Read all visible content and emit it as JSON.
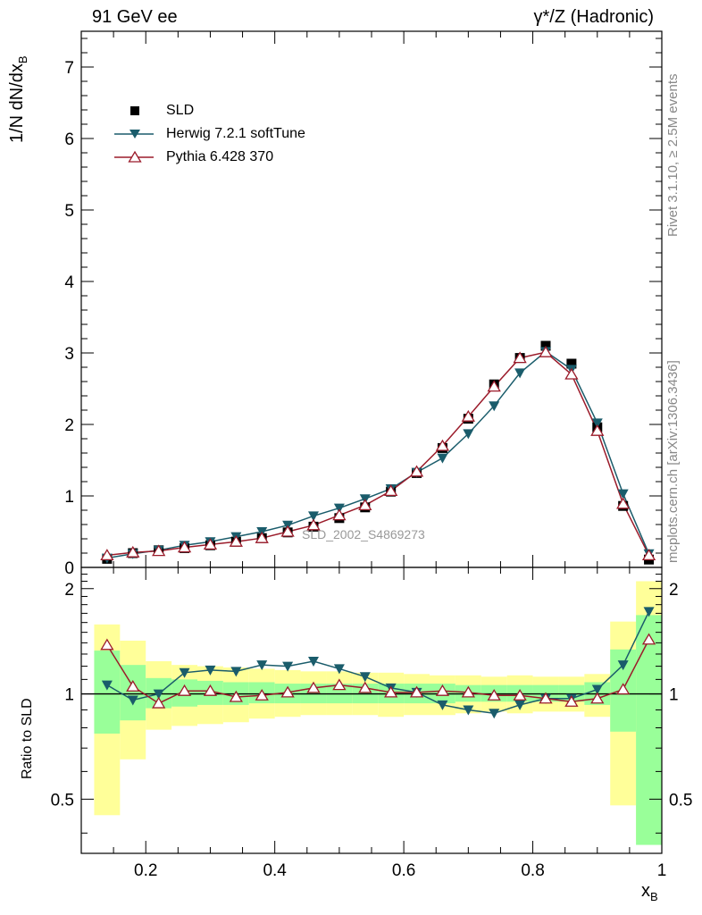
{
  "header": {
    "left": "91 GeV ee",
    "right_sup": "γ*/Z (Hadronic)"
  },
  "side_labels": {
    "rivet": "Rivet 3.1.10, ≥ 2.5M events",
    "mcplots": "mcplots.cern.ch [arXiv:1306.3436]"
  },
  "watermark": "SLD_2002_S4869273",
  "axes": {
    "ylabel_main": "1/N dN/dx",
    "ylabel_main_sub": "B",
    "ylabel_ratio": "Ratio to SLD",
    "xlabel": "x",
    "xlabel_sub": "B"
  },
  "colors": {
    "data": "#000000",
    "herwig": "#1a5c6b",
    "pythia": "#9b1b2a",
    "band_outer": "#ffff99",
    "band_inner": "#99ff99"
  },
  "legend": {
    "data": "SLD",
    "herwig": "Herwig 7.2.1 softTune",
    "pythia": "Pythia 6.428 370"
  },
  "chart_data": [
    {
      "type": "scatter",
      "panel": "main",
      "xlim": [
        0.1,
        1.0
      ],
      "ylim": [
        0,
        7.5
      ],
      "x_ticks": [
        "0.2",
        "0.4",
        "0.6",
        "0.8",
        "1"
      ],
      "y_ticks": [
        "0",
        "1",
        "2",
        "3",
        "4",
        "5",
        "6",
        "7"
      ],
      "x": [
        0.14,
        0.18,
        0.22,
        0.26,
        0.3,
        0.34,
        0.38,
        0.42,
        0.46,
        0.5,
        0.54,
        0.58,
        0.62,
        0.66,
        0.7,
        0.74,
        0.78,
        0.82,
        0.86,
        0.9,
        0.94,
        0.98
      ],
      "series": [
        {
          "name": "SLD",
          "values": [
            0.12,
            0.2,
            0.24,
            0.27,
            0.31,
            0.36,
            0.41,
            0.49,
            0.57,
            0.69,
            0.84,
            1.06,
            1.32,
            1.67,
            2.08,
            2.56,
            2.93,
            3.1,
            2.85,
            1.96,
            0.86,
            0.11
          ]
        },
        {
          "name": "Herwig 7.2.1 softTune",
          "values": [
            0.13,
            0.19,
            0.24,
            0.31,
            0.36,
            0.43,
            0.5,
            0.59,
            0.72,
            0.83,
            0.96,
            1.1,
            1.33,
            1.53,
            1.87,
            2.26,
            2.72,
            3.02,
            2.77,
            2.02,
            1.03,
            0.19
          ]
        },
        {
          "name": "Pythia 6.428 370",
          "values": [
            0.17,
            0.21,
            0.23,
            0.28,
            0.32,
            0.36,
            0.41,
            0.5,
            0.59,
            0.73,
            0.87,
            1.07,
            1.34,
            1.7,
            2.11,
            2.53,
            2.93,
            3.01,
            2.7,
            1.91,
            0.89,
            0.17
          ]
        }
      ]
    },
    {
      "type": "line",
      "panel": "ratio",
      "xlim": [
        0.1,
        1.0
      ],
      "ylim": [
        0.35,
        2.3
      ],
      "x_ticks": [
        "0.2",
        "0.4",
        "0.6",
        "0.8",
        "1"
      ],
      "y_ticks": [
        "0.5",
        "1",
        "2"
      ],
      "x": [
        0.14,
        0.18,
        0.22,
        0.26,
        0.3,
        0.34,
        0.38,
        0.42,
        0.46,
        0.5,
        0.54,
        0.58,
        0.62,
        0.66,
        0.7,
        0.74,
        0.78,
        0.82,
        0.86,
        0.9,
        0.94,
        0.98
      ],
      "series": [
        {
          "name": "Herwig 7.2.1 softTune",
          "values": [
            1.06,
            0.96,
            1.0,
            1.15,
            1.17,
            1.16,
            1.21,
            1.2,
            1.24,
            1.18,
            1.12,
            1.04,
            1.01,
            0.93,
            0.9,
            0.88,
            0.93,
            0.97,
            0.97,
            1.03,
            1.21,
            1.72
          ]
        },
        {
          "name": "Pythia 6.428 370",
          "values": [
            1.38,
            1.05,
            0.94,
            1.02,
            1.02,
            0.98,
            0.99,
            1.01,
            1.04,
            1.06,
            1.04,
            1.01,
            1.01,
            1.02,
            1.01,
            0.99,
            0.99,
            0.97,
            0.95,
            0.97,
            1.03,
            1.43
          ]
        }
      ],
      "bands": {
        "outer": {
          "lo": [
            0.45,
            0.65,
            0.79,
            0.81,
            0.82,
            0.83,
            0.85,
            0.86,
            0.87,
            0.87,
            0.87,
            0.86,
            0.87,
            0.87,
            0.88,
            0.89,
            0.88,
            0.89,
            0.89,
            0.86,
            0.48,
            0.38
          ],
          "hi": [
            1.58,
            1.42,
            1.24,
            1.21,
            1.2,
            1.19,
            1.18,
            1.17,
            1.16,
            1.16,
            1.15,
            1.15,
            1.14,
            1.13,
            1.13,
            1.12,
            1.13,
            1.12,
            1.12,
            1.14,
            1.61,
            2.1
          ]
        },
        "inner": {
          "lo": [
            0.77,
            0.84,
            0.91,
            0.92,
            0.93,
            0.93,
            0.94,
            0.94,
            0.94,
            0.94,
            0.94,
            0.94,
            0.94,
            0.94,
            0.95,
            0.95,
            0.95,
            0.95,
            0.95,
            0.93,
            0.78,
            0.37
          ],
          "hi": [
            1.33,
            1.21,
            1.11,
            1.1,
            1.09,
            1.08,
            1.08,
            1.07,
            1.07,
            1.07,
            1.07,
            1.07,
            1.07,
            1.07,
            1.06,
            1.06,
            1.06,
            1.06,
            1.06,
            1.08,
            1.34,
            1.68
          ]
        }
      }
    }
  ]
}
